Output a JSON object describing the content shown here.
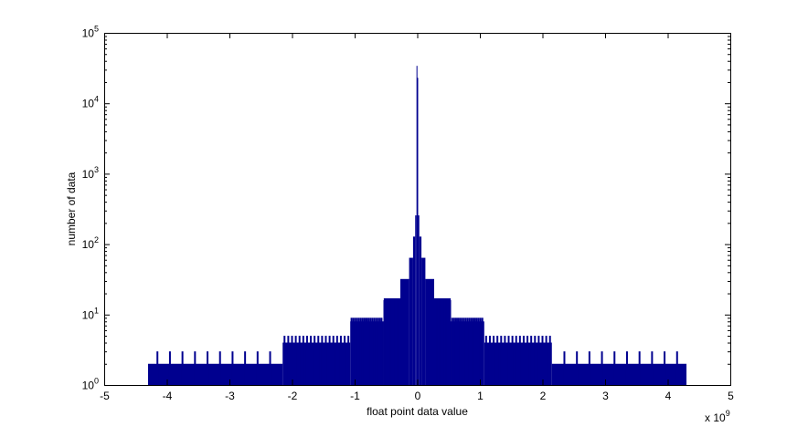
{
  "chart_data": {
    "type": "bar",
    "style": "histogram",
    "title": "",
    "xlabel": "float point data value",
    "ylabel": "number of data",
    "x_exponent_label": "x 10",
    "x_exponent": "9",
    "xlim": [
      -5,
      5
    ],
    "ylim": [
      1,
      100000
    ],
    "yscale": "log",
    "grid": false,
    "bar_color": "#00008F",
    "x_ticks": [
      "-5",
      "-4",
      "-3",
      "-2",
      "-1",
      "0",
      "1",
      "2",
      "3",
      "4",
      "5"
    ],
    "y_ticks": [
      {
        "base": "10",
        "exp": "0"
      },
      {
        "base": "10",
        "exp": "1"
      },
      {
        "base": "10",
        "exp": "2"
      },
      {
        "base": "10",
        "exp": "3"
      },
      {
        "base": "10",
        "exp": "4"
      },
      {
        "base": "10",
        "exp": "5"
      }
    ],
    "bins": [
      {
        "from": -4.3,
        "to": -2.15,
        "value": 2
      },
      {
        "from": -2.15,
        "to": -1.07,
        "value": 4
      },
      {
        "from": -1.07,
        "to": -0.54,
        "value": 8
      },
      {
        "from": -0.54,
        "to": -0.27,
        "value": 16
      },
      {
        "from": -0.27,
        "to": -0.13,
        "value": 32
      },
      {
        "from": -0.13,
        "to": -0.067,
        "value": 64
      },
      {
        "from": -0.067,
        "to": -0.033,
        "value": 128
      },
      {
        "from": -0.033,
        "to": -0.012,
        "value": 256
      },
      {
        "from": -0.012,
        "to": 0.0,
        "value": 34000
      },
      {
        "from": 0.0,
        "to": 0.012,
        "value": 23000
      },
      {
        "from": 0.012,
        "to": 0.033,
        "value": 256
      },
      {
        "from": 0.033,
        "to": 0.067,
        "value": 128
      },
      {
        "from": 0.067,
        "to": 0.13,
        "value": 64
      },
      {
        "from": 0.13,
        "to": 0.27,
        "value": 32
      },
      {
        "from": 0.27,
        "to": 0.54,
        "value": 16
      },
      {
        "from": 0.54,
        "to": 1.07,
        "value": 8
      },
      {
        "from": 1.07,
        "to": 2.15,
        "value": 4
      },
      {
        "from": 2.15,
        "to": 4.3,
        "value": 2
      }
    ],
    "spikes": [
      {
        "from": -4.15,
        "to": -2.35,
        "step": 0.2,
        "value": 3
      },
      {
        "from": -2.12,
        "to": -1.1,
        "step": 0.06,
        "value": 5
      },
      {
        "from": -1.05,
        "to": -0.56,
        "step": 0.03,
        "value": 9
      },
      {
        "from": -0.52,
        "to": -0.28,
        "step": 0.015,
        "value": 17
      },
      {
        "from": 0.28,
        "to": 0.52,
        "step": 0.015,
        "value": 17
      },
      {
        "from": 0.56,
        "to": 1.05,
        "step": 0.03,
        "value": 9
      },
      {
        "from": 1.1,
        "to": 2.12,
        "step": 0.06,
        "value": 5
      },
      {
        "from": 2.35,
        "to": 4.15,
        "step": 0.2,
        "value": 3
      }
    ]
  }
}
